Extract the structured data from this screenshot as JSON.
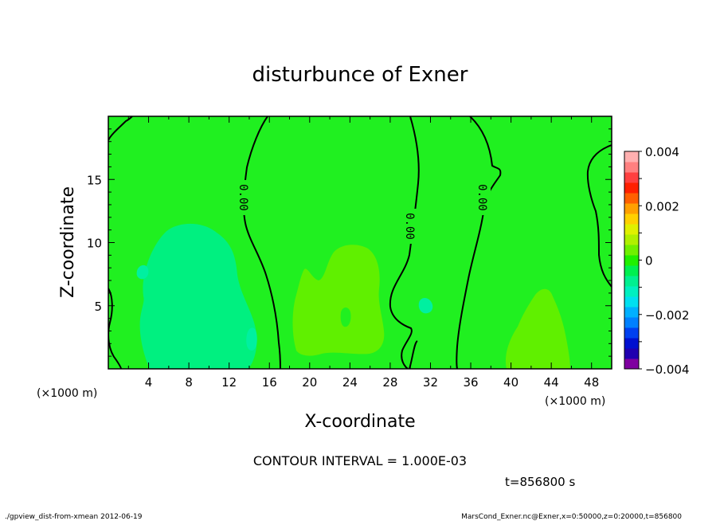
{
  "chart_data": {
    "type": "heatmap",
    "title": "disturbunce of Exner",
    "xlabel": "X-coordinate",
    "ylabel": "Z-coordinate",
    "x_unit_left": "(×1000 m)",
    "x_unit_right": "(×1000 m)",
    "xlim": [
      0,
      50
    ],
    "ylim": [
      0,
      20
    ],
    "x_ticks": [
      4,
      8,
      12,
      16,
      20,
      24,
      28,
      32,
      36,
      40,
      44,
      48
    ],
    "y_ticks": [
      5,
      10,
      15
    ],
    "contour_labels": [
      "0.00",
      "0.00",
      "0.00"
    ],
    "contour_interval_text": "CONTOUR INTERVAL = 1.000E-03",
    "time_text": "t=856800 s",
    "colorbar": {
      "min": -0.004,
      "max": 0.004,
      "tick_values": [
        0.004,
        0.002,
        0,
        -0.002,
        -0.004
      ],
      "tick_labels": [
        "0.004",
        "0.002",
        "0",
        "−0.002",
        "−0.004"
      ],
      "colors": [
        "#7f00a0",
        "#2000b0",
        "#0010d0",
        "#0040f0",
        "#0080ff",
        "#00b0ff",
        "#00e0f0",
        "#00f0c0",
        "#00f090",
        "#00f050",
        "#20f000",
        "#70f000",
        "#b0f000",
        "#e0f000",
        "#ffd000",
        "#ffa000",
        "#ff6000",
        "#ff2000",
        "#ff4040",
        "#ff8080",
        "#ffb0b0"
      ]
    },
    "base_color": "#20f020",
    "regions": [
      {
        "name": "negative-anomaly-left",
        "value": -0.0008,
        "color": "#00f080"
      },
      {
        "name": "positive-anomaly-center",
        "value": 0.0008,
        "color": "#60f000"
      },
      {
        "name": "positive-anomaly-right",
        "value": 0.0008,
        "color": "#60f000"
      }
    ]
  },
  "footer": {
    "left": "./gpview_dist-from-xmean  2012-06-19",
    "right": "MarsCond_Exner.nc@Exner,x=0:50000,z=0:20000,t=856800"
  }
}
